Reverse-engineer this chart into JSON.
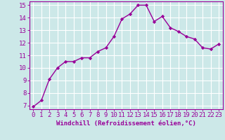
{
  "xlabel": "Windchill (Refroidissement éolien,°C)",
  "x": [
    0,
    1,
    2,
    3,
    4,
    5,
    6,
    7,
    8,
    9,
    10,
    11,
    12,
    13,
    14,
    15,
    16,
    17,
    18,
    19,
    20,
    21,
    22,
    23
  ],
  "y": [
    6.9,
    7.4,
    9.1,
    10.0,
    10.5,
    10.5,
    10.8,
    10.8,
    11.3,
    11.6,
    12.5,
    13.9,
    14.3,
    15.0,
    15.0,
    13.7,
    14.1,
    13.2,
    12.9,
    12.5,
    12.3,
    11.6,
    11.5,
    11.9
  ],
  "line_color": "#990099",
  "marker": "D",
  "marker_size": 2.2,
  "bg_color": "#cce8e8",
  "grid_color": "#ffffff",
  "ylim_min": 6.7,
  "ylim_max": 15.3,
  "xlim_min": -0.5,
  "xlim_max": 23.5,
  "yticks": [
    7,
    8,
    9,
    10,
    11,
    12,
    13,
    14,
    15
  ],
  "xticks": [
    0,
    1,
    2,
    3,
    4,
    5,
    6,
    7,
    8,
    9,
    10,
    11,
    12,
    13,
    14,
    15,
    16,
    17,
    18,
    19,
    20,
    21,
    22,
    23
  ],
  "tick_label_color": "#990099",
  "xlabel_color": "#990099",
  "xlabel_fontsize": 6.5,
  "tick_fontsize": 6.5,
  "line_width": 1.0,
  "spine_color": "#990099"
}
